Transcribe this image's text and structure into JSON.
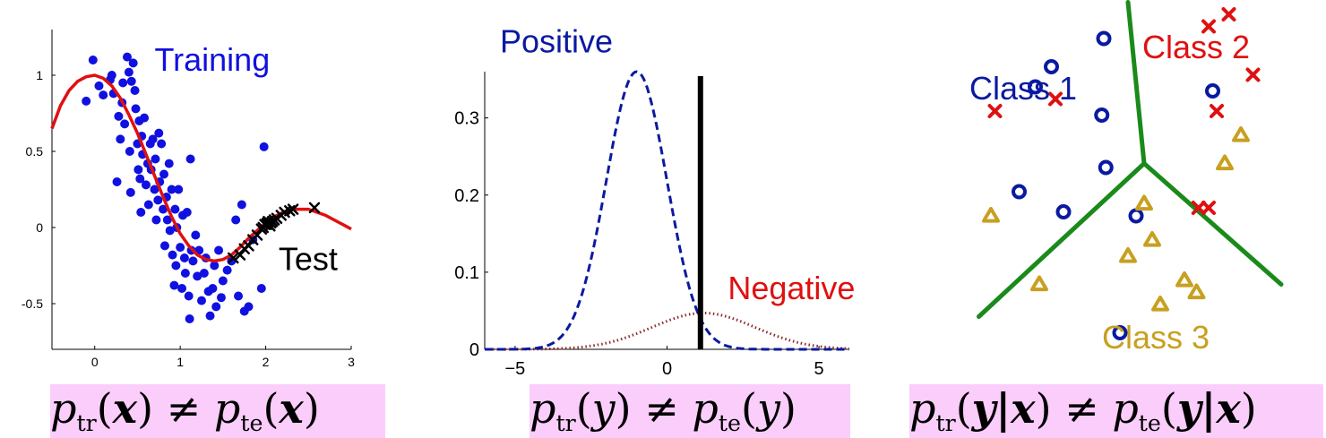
{
  "colors": {
    "training": "#1010e0",
    "fit_curve": "#e01010",
    "test": "#000000",
    "negative": "#8b2a2a",
    "negative_label": "#e01010",
    "positive": "#0a1aa0",
    "threshold": "#000000",
    "class1": "#0a1aa0",
    "class2": "#e01010",
    "class3": "#c8a020",
    "boundary": "#1a8a1a",
    "caption_bg": "#fbcdfb"
  },
  "captions": [
    {
      "p": "p",
      "tr": "tr",
      "arg1": "(",
      "var": "x",
      "close": ")",
      "neq": " ≠ ",
      "te": "te"
    },
    {
      "p": "p",
      "tr": "tr",
      "arg1": "(",
      "var": "y",
      "close": ")",
      "neq": " ≠ ",
      "te": "te"
    },
    {
      "p": "p",
      "tr": "tr",
      "arg1": "(",
      "var": "y|x",
      "close": ")",
      "neq": " ≠ ",
      "te": "te"
    }
  ],
  "caption_text": [
    "p_tr(x) ≠ p_te(x)",
    "p_tr(y) ≠ p_te(y)",
    "p_tr(y|x) ≠ p_te(y|x)"
  ],
  "chart_data": [
    {
      "type": "scatter",
      "title": "",
      "xlim": [
        -0.5,
        3
      ],
      "ylim": [
        -0.8,
        1.3
      ],
      "xticks": [
        0,
        1,
        2,
        3
      ],
      "yticks": [
        -0.5,
        0,
        0.5,
        1
      ],
      "xtick_labels": [
        "0",
        "1",
        "2",
        "3"
      ],
      "ytick_labels": [
        "-0.5",
        "0",
        "0.5",
        "1"
      ],
      "annotations": [
        {
          "text": "Training",
          "color": "training",
          "at": [
            0.7,
            1.03
          ]
        },
        {
          "text": "Test",
          "color": "test",
          "at": [
            2.15,
            -0.28
          ]
        }
      ],
      "series": [
        {
          "name": "Training",
          "marker": "dot",
          "points": [
            [
              -0.1,
              0.83
            ],
            [
              -0.02,
              1.1
            ],
            [
              0.05,
              0.93
            ],
            [
              0.1,
              0.87
            ],
            [
              0.18,
              0.97
            ],
            [
              0.2,
              1.0
            ],
            [
              0.22,
              0.88
            ],
            [
              0.26,
              0.3
            ],
            [
              0.28,
              0.73
            ],
            [
              0.3,
              0.58
            ],
            [
              0.32,
              0.82
            ],
            [
              0.33,
              0.95
            ],
            [
              0.35,
              0.68
            ],
            [
              0.38,
              1.12
            ],
            [
              0.4,
              1.02
            ],
            [
              0.41,
              0.5
            ],
            [
              0.42,
              0.23
            ],
            [
              0.43,
              0.96
            ],
            [
              0.45,
              1.08
            ],
            [
              0.47,
              0.9
            ],
            [
              0.48,
              0.78
            ],
            [
              0.5,
              0.55
            ],
            [
              0.51,
              0.38
            ],
            [
              0.52,
              0.7
            ],
            [
              0.53,
              0.32
            ],
            [
              0.54,
              0.1
            ],
            [
              0.55,
              0.6
            ],
            [
              0.56,
              0.48
            ],
            [
              0.58,
              0.72
            ],
            [
              0.6,
              0.28
            ],
            [
              0.62,
              0.42
            ],
            [
              0.63,
              0.15
            ],
            [
              0.65,
              0.55
            ],
            [
              0.66,
              0.38
            ],
            [
              0.68,
              0.58
            ],
            [
              0.7,
              0.25
            ],
            [
              0.71,
              0.45
            ],
            [
              0.72,
              0.05
            ],
            [
              0.74,
              0.18
            ],
            [
              0.75,
              0.62
            ],
            [
              0.76,
              0.3
            ],
            [
              0.78,
              0.55
            ],
            [
              0.8,
              0.12
            ],
            [
              0.81,
              0.35
            ],
            [
              0.82,
              -0.12
            ],
            [
              0.84,
              0.2
            ],
            [
              0.85,
              0.05
            ],
            [
              0.87,
              0.42
            ],
            [
              0.88,
              -0.02
            ],
            [
              0.9,
              0.25
            ],
            [
              0.91,
              -0.18
            ],
            [
              0.93,
              -0.38
            ],
            [
              0.94,
              0.12
            ],
            [
              0.95,
              -0.25
            ],
            [
              0.96,
              0.0
            ],
            [
              0.98,
              0.25
            ],
            [
              1.0,
              -0.13
            ],
            [
              1.02,
              -0.4
            ],
            [
              1.03,
              0.08
            ],
            [
              1.05,
              -0.2
            ],
            [
              1.06,
              -0.3
            ],
            [
              1.08,
              0.1
            ],
            [
              1.1,
              -0.45
            ],
            [
              1.11,
              -0.6
            ],
            [
              1.12,
              0.45
            ],
            [
              1.13,
              -0.15
            ],
            [
              1.15,
              -0.22
            ],
            [
              1.18,
              -0.05
            ],
            [
              1.2,
              -0.32
            ],
            [
              1.22,
              -0.15
            ],
            [
              1.25,
              -0.48
            ],
            [
              1.28,
              -0.3
            ],
            [
              1.3,
              -0.2
            ],
            [
              1.33,
              -0.42
            ],
            [
              1.35,
              -0.58
            ],
            [
              1.38,
              -0.4
            ],
            [
              1.4,
              -0.25
            ],
            [
              1.42,
              -0.52
            ],
            [
              1.45,
              -0.15
            ],
            [
              1.48,
              -0.46
            ],
            [
              1.5,
              -0.35
            ],
            [
              1.55,
              -0.28
            ],
            [
              1.6,
              -0.22
            ],
            [
              1.65,
              0.05
            ],
            [
              1.68,
              -0.45
            ],
            [
              1.72,
              0.15
            ],
            [
              1.75,
              -0.55
            ],
            [
              1.8,
              -0.52
            ],
            [
              1.85,
              -0.08
            ],
            [
              1.95,
              -0.4
            ],
            [
              1.98,
              0.53
            ]
          ]
        },
        {
          "name": "Test",
          "marker": "x",
          "points": [
            [
              1.62,
              -0.2
            ],
            [
              1.7,
              -0.18
            ],
            [
              1.75,
              -0.14
            ],
            [
              1.8,
              -0.12
            ],
            [
              1.85,
              -0.08
            ],
            [
              1.9,
              -0.05
            ],
            [
              1.95,
              -0.01
            ],
            [
              1.97,
              0.0
            ],
            [
              1.99,
              0.02
            ],
            [
              2.01,
              0.02
            ],
            [
              2.02,
              0.03
            ],
            [
              2.03,
              0.04
            ],
            [
              2.05,
              0.01
            ],
            [
              2.06,
              0.03
            ],
            [
              2.08,
              0.04
            ],
            [
              2.1,
              0.05
            ],
            [
              2.13,
              0.06
            ],
            [
              2.18,
              0.08
            ],
            [
              2.22,
              0.1
            ],
            [
              2.28,
              0.11
            ],
            [
              2.32,
              0.12
            ],
            [
              2.57,
              0.13
            ]
          ]
        },
        {
          "name": "fit",
          "marker": "line",
          "points": [
            [
              -0.5,
              0.65
            ],
            [
              -0.4,
              0.8
            ],
            [
              -0.3,
              0.9
            ],
            [
              -0.2,
              0.96
            ],
            [
              -0.1,
              0.99
            ],
            [
              0.0,
              1.0
            ],
            [
              0.1,
              0.98
            ],
            [
              0.2,
              0.93
            ],
            [
              0.3,
              0.85
            ],
            [
              0.4,
              0.74
            ],
            [
              0.5,
              0.62
            ],
            [
              0.6,
              0.48
            ],
            [
              0.7,
              0.34
            ],
            [
              0.8,
              0.2
            ],
            [
              0.9,
              0.07
            ],
            [
              1.0,
              -0.04
            ],
            [
              1.1,
              -0.12
            ],
            [
              1.2,
              -0.18
            ],
            [
              1.3,
              -0.21
            ],
            [
              1.4,
              -0.22
            ],
            [
              1.5,
              -0.21
            ],
            [
              1.6,
              -0.18
            ],
            [
              1.7,
              -0.13
            ],
            [
              1.8,
              -0.07
            ],
            [
              1.9,
              -0.02
            ],
            [
              2.0,
              0.03
            ],
            [
              2.1,
              0.07
            ],
            [
              2.2,
              0.1
            ],
            [
              2.3,
              0.12
            ],
            [
              2.4,
              0.12
            ],
            [
              2.5,
              0.12
            ],
            [
              2.6,
              0.1
            ],
            [
              2.7,
              0.08
            ],
            [
              2.8,
              0.05
            ],
            [
              2.9,
              0.02
            ],
            [
              3.0,
              -0.01
            ]
          ]
        }
      ]
    },
    {
      "type": "line",
      "title": "",
      "xlim": [
        -6,
        6
      ],
      "ylim": [
        0,
        0.36
      ],
      "xticks": [
        -5,
        0,
        5
      ],
      "yticks": [
        0,
        0.1,
        0.2,
        0.3
      ],
      "xtick_labels": [
        "−5",
        "0",
        "5"
      ],
      "ytick_labels": [
        "0",
        "0.1",
        "0.2",
        "0.3"
      ],
      "annotations": [
        {
          "text": "Positive",
          "color": "positive",
          "at": [
            -5.5,
            0.385
          ]
        },
        {
          "text": "Negative",
          "color": "negative_label",
          "at": [
            2.0,
            0.065
          ]
        }
      ],
      "threshold_x": 1.1,
      "series": [
        {
          "name": "Positive",
          "style": "dashed",
          "mean": -1,
          "sd": 1,
          "peak": 0.36
        },
        {
          "name": "Negative",
          "style": "dotted",
          "mean": 1.2,
          "sd": 1.7,
          "peak": 0.047
        }
      ]
    },
    {
      "type": "scatter",
      "title": "",
      "annotations": [
        {
          "text": "Class 1",
          "color": "class1"
        },
        {
          "text": "Class 2",
          "color": "class2"
        },
        {
          "text": "Class 3",
          "color": "class3"
        }
      ],
      "series": [
        {
          "name": "Class 1",
          "marker": "circle",
          "points": [
            [
              1.9,
              7.4
            ],
            [
              1.5,
              4.8
            ],
            [
              2.3,
              7.9
            ],
            [
              3.6,
              8.6
            ],
            [
              3.55,
              6.7
            ],
            [
              3.65,
              5.4
            ],
            [
              4.4,
              4.2
            ],
            [
              2.6,
              4.3
            ],
            [
              4.0,
              1.3
            ],
            [
              6.3,
              7.3
            ]
          ]
        },
        {
          "name": "Class 2",
          "marker": "x",
          "points": [
            [
              0.9,
              6.8
            ],
            [
              2.4,
              7.1
            ],
            [
              6.2,
              8.9
            ],
            [
              6.7,
              9.2
            ],
            [
              6.4,
              6.8
            ],
            [
              7.3,
              7.7
            ],
            [
              5.95,
              4.4
            ],
            [
              6.2,
              4.4
            ]
          ]
        },
        {
          "name": "Class 3",
          "marker": "triangle",
          "points": [
            [
              0.8,
              4.2
            ],
            [
              4.6,
              4.5
            ],
            [
              4.2,
              3.2
            ],
            [
              5.0,
              2.0
            ],
            [
              2.0,
              2.5
            ],
            [
              5.9,
              2.3
            ],
            [
              6.6,
              5.5
            ],
            [
              7.0,
              6.2
            ],
            [
              4.8,
              3.6
            ],
            [
              5.6,
              2.6
            ]
          ]
        }
      ],
      "boundaries": [
        {
          "from": [
            4.6,
            5.5
          ],
          "to": [
            4.2,
            9.5
          ]
        },
        {
          "from": [
            4.6,
            5.5
          ],
          "to": [
            0.5,
            1.7
          ]
        },
        {
          "from": [
            4.6,
            5.5
          ],
          "to": [
            8.0,
            2.5
          ]
        }
      ]
    }
  ]
}
